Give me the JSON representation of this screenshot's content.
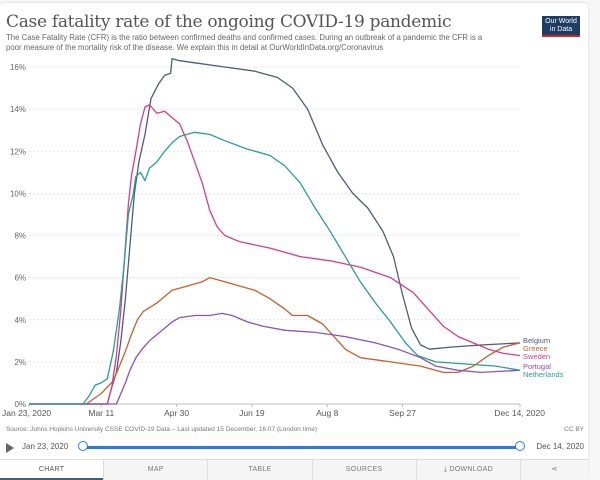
{
  "header": {
    "title": "Case fatality rate of the ongoing COVID-19 pandemic",
    "subtitle": "The Case Fatality Rate (CFR) is the ratio between confirmed deaths and confirmed cases. During an outbreak of a pandemic the CFR is a poor measure of the mortality risk of the disease. We explain this in detail at OurWorldInData.org/Coronavirus",
    "logo_line1": "Our World",
    "logo_line2": "in Data"
  },
  "footer": {
    "source": "Source: Johns Hopkins University CSSE COVID-19 Data – Last updated 15 December, 16:07 (London time)",
    "license": "CC BY"
  },
  "timeline": {
    "start_label": "Jan 23, 2020",
    "end_label": "Dec 14, 2020",
    "play_icon": "play-icon"
  },
  "tabs": [
    {
      "label": "CHART",
      "active": true
    },
    {
      "label": "MAP"
    },
    {
      "label": "TABLE"
    },
    {
      "label": "SOURCES"
    },
    {
      "label": "⤓ DOWNLOAD"
    },
    {
      "label": "⋖",
      "icon": "share-icon"
    }
  ],
  "chart_data": {
    "type": "line",
    "title": "Case fatality rate of the ongoing COVID-19 pandemic",
    "xlabel": "",
    "ylabel": "",
    "x_range_days": [
      0,
      326
    ],
    "x_ticks": [
      {
        "day": 0,
        "label": "Jan 23, 2020"
      },
      {
        "day": 48,
        "label": "Mar 11"
      },
      {
        "day": 98,
        "label": "Apr 30"
      },
      {
        "day": 148,
        "label": "Jun 19"
      },
      {
        "day": 198,
        "label": "Aug 8"
      },
      {
        "day": 248,
        "label": "Sep 27"
      },
      {
        "day": 326,
        "label": "Dec 14, 2020"
      }
    ],
    "ylim": [
      0,
      16
    ],
    "y_ticks": [
      "0%",
      "2%",
      "4%",
      "6%",
      "8%",
      "10%",
      "12%",
      "14%",
      "16%"
    ],
    "y_tick_values": [
      0,
      2,
      4,
      6,
      8,
      10,
      12,
      14,
      16
    ],
    "grid": true,
    "legend": "right-inline",
    "series": [
      {
        "name": "Belgium",
        "color": "#4c5c7d",
        "points": [
          [
            0,
            0
          ],
          [
            52,
            0
          ],
          [
            55,
            0.8
          ],
          [
            58,
            1.5
          ],
          [
            61,
            3
          ],
          [
            64,
            5
          ],
          [
            67,
            7.5
          ],
          [
            70,
            10
          ],
          [
            73,
            11.5
          ],
          [
            77,
            12.8
          ],
          [
            81,
            14.5
          ],
          [
            86,
            15.2
          ],
          [
            90,
            15.6
          ],
          [
            94,
            15.7
          ],
          [
            95,
            16.4
          ],
          [
            100,
            16.3
          ],
          [
            110,
            16.2
          ],
          [
            130,
            16.0
          ],
          [
            150,
            15.8
          ],
          [
            165,
            15.5
          ],
          [
            175,
            15.0
          ],
          [
            185,
            14.0
          ],
          [
            195,
            12.3
          ],
          [
            205,
            11.0
          ],
          [
            215,
            10.0
          ],
          [
            225,
            9.3
          ],
          [
            235,
            8.2
          ],
          [
            242,
            7.0
          ],
          [
            248,
            5.2
          ],
          [
            254,
            3.6
          ],
          [
            260,
            2.8
          ],
          [
            266,
            2.6
          ],
          [
            280,
            2.7
          ],
          [
            300,
            2.8
          ],
          [
            326,
            2.9
          ]
        ]
      },
      {
        "name": "Greece",
        "color": "#c4612c",
        "points": [
          [
            0,
            0
          ],
          [
            38,
            0
          ],
          [
            48,
            0.5
          ],
          [
            56,
            1.1
          ],
          [
            60,
            1.8
          ],
          [
            64,
            2.5
          ],
          [
            68,
            3.3
          ],
          [
            72,
            4.0
          ],
          [
            76,
            4.4
          ],
          [
            85,
            4.8
          ],
          [
            95,
            5.4
          ],
          [
            105,
            5.6
          ],
          [
            115,
            5.8
          ],
          [
            120,
            6.0
          ],
          [
            130,
            5.8
          ],
          [
            140,
            5.6
          ],
          [
            150,
            5.4
          ],
          [
            160,
            5.0
          ],
          [
            170,
            4.5
          ],
          [
            175,
            4.2
          ],
          [
            185,
            4.2
          ],
          [
            195,
            3.8
          ],
          [
            205,
            3.0
          ],
          [
            210,
            2.6
          ],
          [
            220,
            2.2
          ],
          [
            240,
            2.0
          ],
          [
            260,
            1.8
          ],
          [
            275,
            1.5
          ],
          [
            285,
            1.5
          ],
          [
            295,
            1.8
          ],
          [
            305,
            2.3
          ],
          [
            315,
            2.7
          ],
          [
            326,
            2.9
          ]
        ]
      },
      {
        "name": "Sweden",
        "color": "#d63d8a",
        "points": [
          [
            0,
            0
          ],
          [
            52,
            0
          ],
          [
            55,
            0.8
          ],
          [
            58,
            2.3
          ],
          [
            61,
            4.5
          ],
          [
            64,
            7.5
          ],
          [
            66,
            9.5
          ],
          [
            68,
            10.8
          ],
          [
            71,
            12.0
          ],
          [
            74,
            13.3
          ],
          [
            77,
            14.1
          ],
          [
            80,
            14.2
          ],
          [
            85,
            13.8
          ],
          [
            90,
            13.9
          ],
          [
            95,
            13.6
          ],
          [
            100,
            13.3
          ],
          [
            105,
            12.5
          ],
          [
            110,
            11.5
          ],
          [
            115,
            10.5
          ],
          [
            120,
            9.2
          ],
          [
            125,
            8.4
          ],
          [
            130,
            8.0
          ],
          [
            140,
            7.7
          ],
          [
            160,
            7.4
          ],
          [
            180,
            7.0
          ],
          [
            200,
            6.8
          ],
          [
            220,
            6.5
          ],
          [
            240,
            6.0
          ],
          [
            255,
            5.3
          ],
          [
            265,
            4.5
          ],
          [
            275,
            3.7
          ],
          [
            285,
            3.2
          ],
          [
            295,
            2.9
          ],
          [
            305,
            2.6
          ],
          [
            315,
            2.4
          ],
          [
            326,
            2.3
          ]
        ]
      },
      {
        "name": "Portugal",
        "color": "#8b52b8",
        "points": [
          [
            0,
            0
          ],
          [
            58,
            0
          ],
          [
            61,
            0.5
          ],
          [
            64,
            1.0
          ],
          [
            67,
            1.6
          ],
          [
            71,
            2.2
          ],
          [
            75,
            2.6
          ],
          [
            80,
            3.0
          ],
          [
            85,
            3.3
          ],
          [
            90,
            3.6
          ],
          [
            95,
            3.9
          ],
          [
            100,
            4.1
          ],
          [
            110,
            4.2
          ],
          [
            120,
            4.2
          ],
          [
            128,
            4.3
          ],
          [
            135,
            4.2
          ],
          [
            145,
            3.9
          ],
          [
            155,
            3.7
          ],
          [
            170,
            3.5
          ],
          [
            190,
            3.4
          ],
          [
            210,
            3.2
          ],
          [
            230,
            2.9
          ],
          [
            245,
            2.6
          ],
          [
            260,
            2.2
          ],
          [
            270,
            1.8
          ],
          [
            285,
            1.6
          ],
          [
            300,
            1.5
          ],
          [
            326,
            1.6
          ]
        ]
      },
      {
        "name": "Netherlands",
        "color": "#2a9d96",
        "points": [
          [
            0,
            0
          ],
          [
            36,
            0
          ],
          [
            40,
            0.4
          ],
          [
            44,
            0.9
          ],
          [
            48,
            1.0
          ],
          [
            52,
            1.2
          ],
          [
            56,
            2.5
          ],
          [
            60,
            4.5
          ],
          [
            63,
            6.5
          ],
          [
            66,
            9.0
          ],
          [
            69,
            9.9
          ],
          [
            71,
            10.8
          ],
          [
            74,
            11.0
          ],
          [
            77,
            10.6
          ],
          [
            80,
            11.2
          ],
          [
            85,
            11.5
          ],
          [
            90,
            12.0
          ],
          [
            95,
            12.4
          ],
          [
            100,
            12.7
          ],
          [
            110,
            12.9
          ],
          [
            120,
            12.8
          ],
          [
            130,
            12.5
          ],
          [
            145,
            12.1
          ],
          [
            160,
            11.8
          ],
          [
            170,
            11.3
          ],
          [
            180,
            10.5
          ],
          [
            190,
            9.3
          ],
          [
            200,
            8.2
          ],
          [
            210,
            7.0
          ],
          [
            220,
            5.8
          ],
          [
            230,
            4.8
          ],
          [
            240,
            3.9
          ],
          [
            250,
            2.9
          ],
          [
            258,
            2.3
          ],
          [
            270,
            2.0
          ],
          [
            290,
            1.9
          ],
          [
            310,
            1.8
          ],
          [
            326,
            1.6
          ]
        ]
      }
    ],
    "legend_entries": [
      "Belgium",
      "Greece",
      "Sweden",
      "Portugal",
      "Netherlands"
    ]
  }
}
